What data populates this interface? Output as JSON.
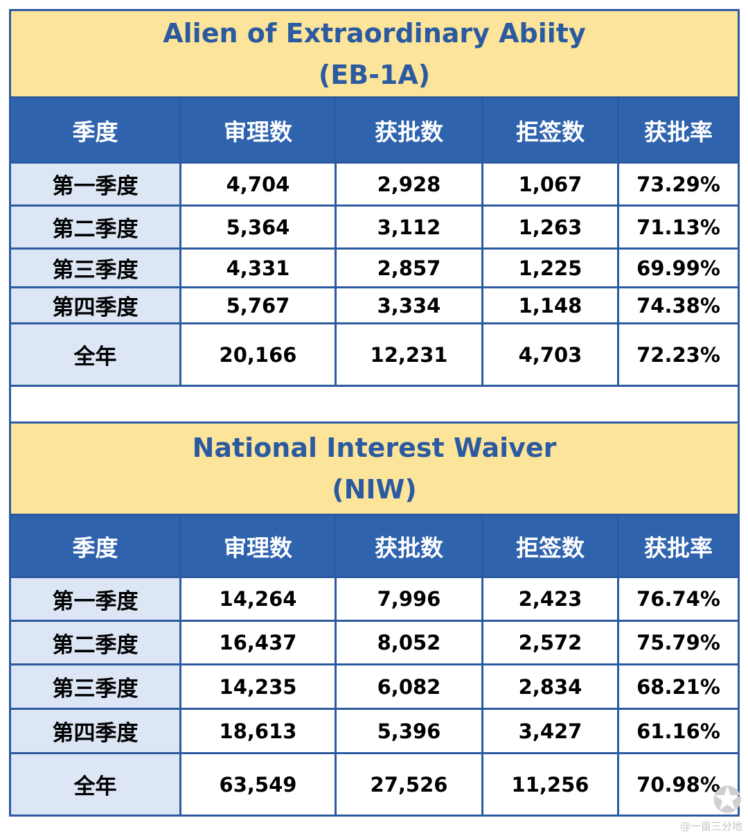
{
  "chart_data": [
    {
      "type": "table",
      "title": "Alien of Extraordinary Abiity",
      "subtitle": "(EB-1A)",
      "columns": [
        "季度",
        "审理数",
        "获批数",
        "拒签数",
        "获批率"
      ],
      "rows": [
        [
          "第一季度",
          "4,704",
          "2,928",
          "1,067",
          "73.29%"
        ],
        [
          "第二季度",
          "5,364",
          "3,112",
          "1,263",
          "71.13%"
        ],
        [
          "第三季度",
          "4,331",
          "2,857",
          "1,225",
          "69.99%"
        ],
        [
          "第四季度",
          "5,767",
          "3,334",
          "1,148",
          "74.38%"
        ],
        [
          "全年",
          "20,166",
          "12,231",
          "4,703",
          "72.23%"
        ]
      ]
    },
    {
      "type": "table",
      "title": "National Interest Waiver",
      "subtitle": "(NIW)",
      "columns": [
        "季度",
        "审理数",
        "获批数",
        "拒签数",
        "获批率"
      ],
      "rows": [
        [
          "第一季度",
          "14,264",
          "7,996",
          "2,423",
          "76.74%"
        ],
        [
          "第二季度",
          "16,437",
          "8,052",
          "2,572",
          "75.79%"
        ],
        [
          "第三季度",
          "14,235",
          "6,082",
          "2,834",
          "68.21%"
        ],
        [
          "第四季度",
          "18,613",
          "5,396",
          "3,427",
          "61.16%"
        ],
        [
          "全年",
          "63,549",
          "27,526",
          "11,256",
          "70.98%"
        ]
      ]
    }
  ],
  "colors": {
    "title_bg": "#fce49a",
    "title_text": "#2b5aa0",
    "header_bg": "#2f63ae",
    "quarter_bg": "#dce6f4",
    "border": "#2b5aa0"
  },
  "watermark": {
    "icon": "weibo-logo-icon",
    "text": "@一亩三分地"
  }
}
